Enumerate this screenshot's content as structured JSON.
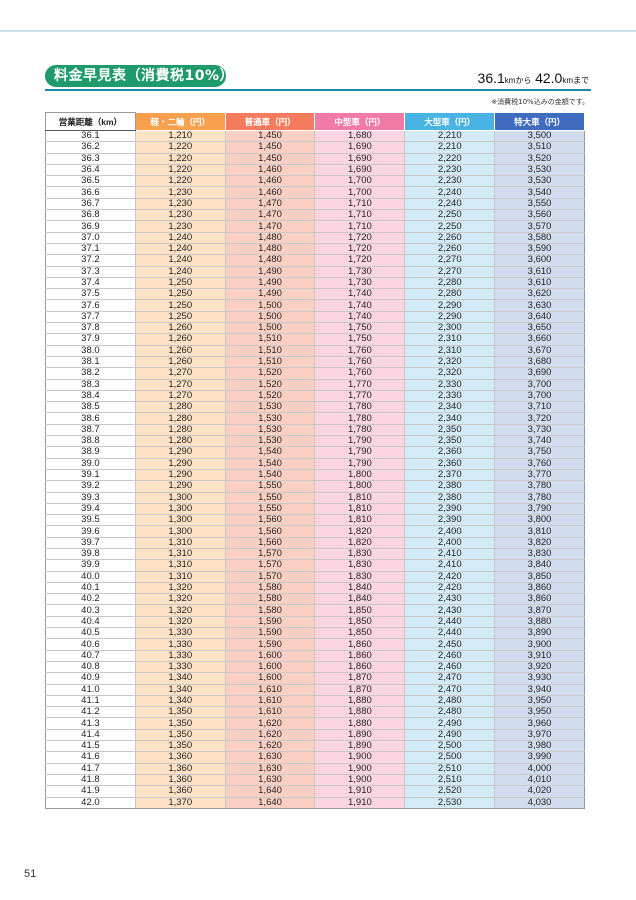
{
  "header": {
    "title": "料金早見表（消費税10%）",
    "range_from": "36.1",
    "unit_km_1": "km",
    "from_word": "から",
    "range_to": "42.0",
    "unit_km_2": "km",
    "to_word": "まで",
    "note": "※消費税10%込みの金額です。"
  },
  "table": {
    "columns": [
      "営業距離（km）",
      "軽・二輪（円）",
      "普通車（円）",
      "中型車（円）",
      "大型車（円）",
      "特大車（円）"
    ],
    "rows": [
      [
        "36.1",
        "1,210",
        "1,450",
        "1,680",
        "2,210",
        "3,500"
      ],
      [
        "36.2",
        "1,220",
        "1,450",
        "1,690",
        "2,210",
        "3,510"
      ],
      [
        "36.3",
        "1,220",
        "1,450",
        "1,690",
        "2,220",
        "3,520"
      ],
      [
        "36.4",
        "1,220",
        "1,460",
        "1,690",
        "2,230",
        "3,530"
      ],
      [
        "36.5",
        "1,220",
        "1,460",
        "1,700",
        "2,230",
        "3,530"
      ],
      [
        "36.6",
        "1,230",
        "1,460",
        "1,700",
        "2,240",
        "3,540"
      ],
      [
        "36.7",
        "1,230",
        "1,470",
        "1,710",
        "2,240",
        "3,550"
      ],
      [
        "36.8",
        "1,230",
        "1,470",
        "1,710",
        "2,250",
        "3,560"
      ],
      [
        "36.9",
        "1,230",
        "1,470",
        "1,710",
        "2,250",
        "3,570"
      ],
      [
        "37.0",
        "1,240",
        "1,480",
        "1,720",
        "2,260",
        "3,580"
      ],
      [
        "37.1",
        "1,240",
        "1,480",
        "1,720",
        "2,260",
        "3,590"
      ],
      [
        "37.2",
        "1,240",
        "1,480",
        "1,720",
        "2,270",
        "3,600"
      ],
      [
        "37.3",
        "1,240",
        "1,490",
        "1,730",
        "2,270",
        "3,610"
      ],
      [
        "37.4",
        "1,250",
        "1,490",
        "1,730",
        "2,280",
        "3,610"
      ],
      [
        "37.5",
        "1,250",
        "1,490",
        "1,740",
        "2,280",
        "3,620"
      ],
      [
        "37.6",
        "1,250",
        "1,500",
        "1,740",
        "2,290",
        "3,630"
      ],
      [
        "37.7",
        "1,250",
        "1,500",
        "1,740",
        "2,290",
        "3,640"
      ],
      [
        "37.8",
        "1,260",
        "1,500",
        "1,750",
        "2,300",
        "3,650"
      ],
      [
        "37.9",
        "1,260",
        "1,510",
        "1,750",
        "2,310",
        "3,660"
      ],
      [
        "38.0",
        "1,260",
        "1,510",
        "1,760",
        "2,310",
        "3,670"
      ],
      [
        "38.1",
        "1,260",
        "1,510",
        "1,760",
        "2,320",
        "3,680"
      ],
      [
        "38.2",
        "1,270",
        "1,520",
        "1,760",
        "2,320",
        "3,690"
      ],
      [
        "38.3",
        "1,270",
        "1,520",
        "1,770",
        "2,330",
        "3,700"
      ],
      [
        "38.4",
        "1,270",
        "1,520",
        "1,770",
        "2,330",
        "3,700"
      ],
      [
        "38.5",
        "1,280",
        "1,530",
        "1,780",
        "2,340",
        "3,710"
      ],
      [
        "38.6",
        "1,280",
        "1,530",
        "1,780",
        "2,340",
        "3,720"
      ],
      [
        "38.7",
        "1,280",
        "1,530",
        "1,780",
        "2,350",
        "3,730"
      ],
      [
        "38.8",
        "1,280",
        "1,530",
        "1,790",
        "2,350",
        "3,740"
      ],
      [
        "38.9",
        "1,290",
        "1,540",
        "1,790",
        "2,360",
        "3,750"
      ],
      [
        "39.0",
        "1,290",
        "1,540",
        "1,790",
        "2,360",
        "3,760"
      ],
      [
        "39.1",
        "1,290",
        "1,540",
        "1,800",
        "2,370",
        "3,770"
      ],
      [
        "39.2",
        "1,290",
        "1,550",
        "1,800",
        "2,380",
        "3,780"
      ],
      [
        "39.3",
        "1,300",
        "1,550",
        "1,810",
        "2,380",
        "3,780"
      ],
      [
        "39.4",
        "1,300",
        "1,550",
        "1,810",
        "2,390",
        "3,790"
      ],
      [
        "39.5",
        "1,300",
        "1,560",
        "1,810",
        "2,390",
        "3,800"
      ],
      [
        "39.6",
        "1,300",
        "1,560",
        "1,820",
        "2,400",
        "3,810"
      ],
      [
        "39.7",
        "1,310",
        "1,560",
        "1,820",
        "2,400",
        "3,820"
      ],
      [
        "39.8",
        "1,310",
        "1,570",
        "1,830",
        "2,410",
        "3,830"
      ],
      [
        "39.9",
        "1,310",
        "1,570",
        "1,830",
        "2,410",
        "3,840"
      ],
      [
        "40.0",
        "1,310",
        "1,570",
        "1,830",
        "2,420",
        "3,850"
      ],
      [
        "40.1",
        "1,320",
        "1,580",
        "1,840",
        "2,420",
        "3,860"
      ],
      [
        "40.2",
        "1,320",
        "1,580",
        "1,840",
        "2,430",
        "3,860"
      ],
      [
        "40.3",
        "1,320",
        "1,580",
        "1,850",
        "2,430",
        "3,870"
      ],
      [
        "40.4",
        "1,320",
        "1,590",
        "1,850",
        "2,440",
        "3,880"
      ],
      [
        "40.5",
        "1,330",
        "1,590",
        "1,850",
        "2,440",
        "3,890"
      ],
      [
        "40.6",
        "1,330",
        "1,590",
        "1,860",
        "2,450",
        "3,900"
      ],
      [
        "40.7",
        "1,330",
        "1,600",
        "1,860",
        "2,460",
        "3,910"
      ],
      [
        "40.8",
        "1,330",
        "1,600",
        "1,860",
        "2,460",
        "3,920"
      ],
      [
        "40.9",
        "1,340",
        "1,600",
        "1,870",
        "2,470",
        "3,930"
      ],
      [
        "41.0",
        "1,340",
        "1,610",
        "1,870",
        "2,470",
        "3,940"
      ],
      [
        "41.1",
        "1,340",
        "1,610",
        "1,880",
        "2,480",
        "3,950"
      ],
      [
        "41.2",
        "1,350",
        "1,610",
        "1,880",
        "2,480",
        "3,950"
      ],
      [
        "41.3",
        "1,350",
        "1,620",
        "1,880",
        "2,490",
        "3,960"
      ],
      [
        "41.4",
        "1,350",
        "1,620",
        "1,890",
        "2,490",
        "3,970"
      ],
      [
        "41.5",
        "1,350",
        "1,620",
        "1,890",
        "2,500",
        "3,980"
      ],
      [
        "41.6",
        "1,360",
        "1,630",
        "1,900",
        "2,500",
        "3,990"
      ],
      [
        "41.7",
        "1,360",
        "1,630",
        "1,900",
        "2,510",
        "4,000"
      ],
      [
        "41.8",
        "1,360",
        "1,630",
        "1,900",
        "2,510",
        "4,010"
      ],
      [
        "41.9",
        "1,360",
        "1,640",
        "1,910",
        "2,520",
        "4,020"
      ],
      [
        "42.0",
        "1,370",
        "1,640",
        "1,910",
        "2,530",
        "4,030"
      ]
    ]
  },
  "footer": {
    "page_number": "51"
  },
  "colors": {
    "title_badge": "#1f9a6a",
    "rule": "#1a86a8",
    "kei": "#f7a04e",
    "futsu": "#f47b5e",
    "chugata": "#f27aa6",
    "ogata": "#49b3e3",
    "tokudai": "#3f6cbf"
  }
}
